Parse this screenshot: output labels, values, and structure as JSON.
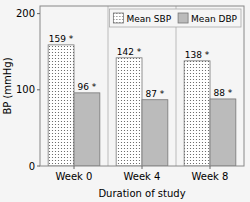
{
  "chart_data": {
    "type": "bar",
    "x_label": "Duration of study",
    "y_label": "BP (mmHg)",
    "categories": [
      "Week 0",
      "Week 4",
      "Week 8"
    ],
    "series": [
      {
        "name": "Mean SBP",
        "color": "#ffffff",
        "values": [
          159,
          142,
          138
        ],
        "value_labels": [
          "159 *",
          "142 *",
          "138 *"
        ]
      },
      {
        "name": "Mean DBP",
        "color": "#bbbbbb",
        "values": [
          96,
          87,
          88
        ],
        "value_labels": [
          "96 *",
          "87 *",
          "88 *"
        ]
      }
    ],
    "ylim": [
      0,
      210
    ],
    "yticks": [
      0,
      100,
      200
    ],
    "grid": false,
    "legend": "upper right",
    "data_labels": true
  }
}
